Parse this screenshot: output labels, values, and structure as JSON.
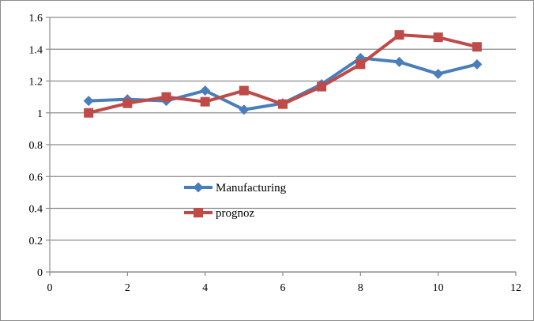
{
  "chart_data": {
    "type": "line",
    "title": "",
    "xlabel": "",
    "ylabel": "",
    "xlim": [
      0,
      12
    ],
    "ylim": [
      0,
      1.6
    ],
    "x_ticks": [
      0,
      2,
      4,
      6,
      8,
      10,
      12
    ],
    "y_ticks": [
      0,
      0.2,
      0.4,
      0.6,
      0.8,
      1,
      1.2,
      1.4,
      1.6
    ],
    "grid": "horizontal",
    "legend_position": "center-left",
    "x": [
      1,
      2,
      3,
      4,
      5,
      6,
      7,
      8,
      9,
      10,
      11
    ],
    "series": [
      {
        "name": "Manufacturing",
        "color": "#4a7ebb",
        "marker": "diamond",
        "values": [
          1.075,
          1.085,
          1.075,
          1.14,
          1.02,
          1.06,
          1.18,
          1.345,
          1.32,
          1.245,
          1.305
        ]
      },
      {
        "name": "prognoz",
        "color": "#be4b48",
        "marker": "square",
        "values": [
          1.0,
          1.06,
          1.1,
          1.07,
          1.14,
          1.055,
          1.165,
          1.305,
          1.49,
          1.475,
          1.415
        ]
      }
    ]
  }
}
